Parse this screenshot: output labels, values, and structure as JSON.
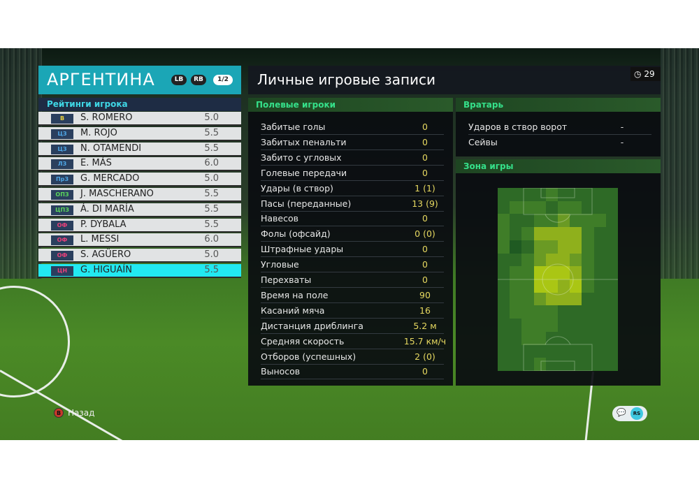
{
  "team": {
    "name": "АРГЕНТИНА",
    "lb": "LB",
    "rb": "RB",
    "page": "1/2"
  },
  "ratings": {
    "title": "Рейтинги игрока",
    "players": [
      {
        "pos": "В",
        "name": "S. ROMERO",
        "rating": "5.0",
        "pos_color": "#e8d040"
      },
      {
        "pos": "ЦЗ",
        "name": "M. ROJO",
        "rating": "5.5",
        "pos_color": "#4fa8e8"
      },
      {
        "pos": "ЦЗ",
        "name": "N. OTAMENDI",
        "rating": "5.5",
        "pos_color": "#4fa8e8"
      },
      {
        "pos": "ЛЗ",
        "name": "E. MÁS",
        "rating": "6.0",
        "pos_color": "#4fa8e8"
      },
      {
        "pos": "ПрЗ",
        "name": "G. MERCADO",
        "rating": "5.0",
        "pos_color": "#4fa8e8"
      },
      {
        "pos": "ОПЗ",
        "name": "J. MASCHERANO",
        "rating": "5.5",
        "pos_color": "#5cd85c"
      },
      {
        "pos": "ЦПЗ",
        "name": "Á. DI MARÍA",
        "rating": "5.5",
        "pos_color": "#5cd85c"
      },
      {
        "pos": "ОФ",
        "name": "P. DYBALA",
        "rating": "5.5",
        "pos_color": "#e8407a"
      },
      {
        "pos": "ОФ",
        "name": "L. MESSI",
        "rating": "6.0",
        "pos_color": "#e8407a"
      },
      {
        "pos": "ОФ",
        "name": "S. AGÜERO",
        "rating": "5.0",
        "pos_color": "#e8407a"
      },
      {
        "pos": "ЦН",
        "name": "G. HIGUAÍN",
        "rating": "5.5",
        "pos_color": "#e8407a"
      }
    ],
    "selected_index": 10
  },
  "records": {
    "title": "Личные игровые записи",
    "timer": "29",
    "field_title": "Полевые игроки",
    "field_stats": [
      {
        "label": "Забитые голы",
        "value": "0"
      },
      {
        "label": "Забитых пенальти",
        "value": "0"
      },
      {
        "label": "Забито с угловых",
        "value": "0"
      },
      {
        "label": "Голевые передачи",
        "value": "0"
      },
      {
        "label": "Удары (в створ)",
        "value": "1 (1)"
      },
      {
        "label": "Пасы (переданные)",
        "value": "13 (9)"
      },
      {
        "label": "Навесов",
        "value": "0"
      },
      {
        "label": "Фолы (офсайд)",
        "value": "0 (0)"
      },
      {
        "label": "Штрафные удары",
        "value": "0"
      },
      {
        "label": "Угловые",
        "value": "0"
      },
      {
        "label": "Перехваты",
        "value": "0"
      },
      {
        "label": "Время на поле",
        "value": "90"
      },
      {
        "label": "Касаний мяча",
        "value": "16"
      },
      {
        "label": "Дистанция дриблинга",
        "value": "5.2 м"
      },
      {
        "label": "Средняя скорость",
        "value": "15.7 км/ч"
      },
      {
        "label": "Отборов (успешных)",
        "value": "2 (0)"
      },
      {
        "label": "Выносов",
        "value": "0"
      }
    ],
    "gk_title": "Вратарь",
    "gk_stats": [
      {
        "label": "Ударов в створ ворот",
        "value": "-"
      },
      {
        "label": "Сейвы",
        "value": "-"
      }
    ],
    "zone_title": "Зона игры",
    "heatmap": [
      [
        1,
        1,
        1,
        1,
        2,
        1,
        1,
        1,
        1,
        1
      ],
      [
        1,
        2,
        2,
        2,
        1,
        2,
        2,
        1,
        1,
        1
      ],
      [
        2,
        1,
        1,
        2,
        2,
        3,
        2,
        2,
        2,
        1
      ],
      [
        2,
        1,
        2,
        4,
        4,
        4,
        4,
        2,
        1,
        1
      ],
      [
        2,
        0,
        1,
        3,
        3,
        4,
        4,
        2,
        1,
        1
      ],
      [
        1,
        1,
        2,
        3,
        4,
        4,
        3,
        2,
        1,
        1
      ],
      [
        1,
        2,
        2,
        5,
        5,
        5,
        4,
        2,
        1,
        1
      ],
      [
        1,
        2,
        2,
        5,
        5,
        4,
        5,
        2,
        1,
        1
      ],
      [
        1,
        2,
        2,
        3,
        4,
        4,
        4,
        1,
        1,
        1
      ],
      [
        1,
        2,
        2,
        2,
        2,
        1,
        1,
        1,
        1,
        1
      ],
      [
        1,
        1,
        2,
        2,
        2,
        1,
        1,
        1,
        1,
        1
      ],
      [
        1,
        1,
        2,
        2,
        1,
        1,
        1,
        1,
        1,
        1
      ],
      [
        1,
        1,
        1,
        1,
        1,
        1,
        1,
        1,
        1,
        1
      ],
      [
        1,
        1,
        1,
        2,
        1,
        1,
        1,
        1,
        1,
        1
      ]
    ]
  },
  "footer": {
    "back_key": "B",
    "back_label": "Назад",
    "rs": "RS"
  }
}
